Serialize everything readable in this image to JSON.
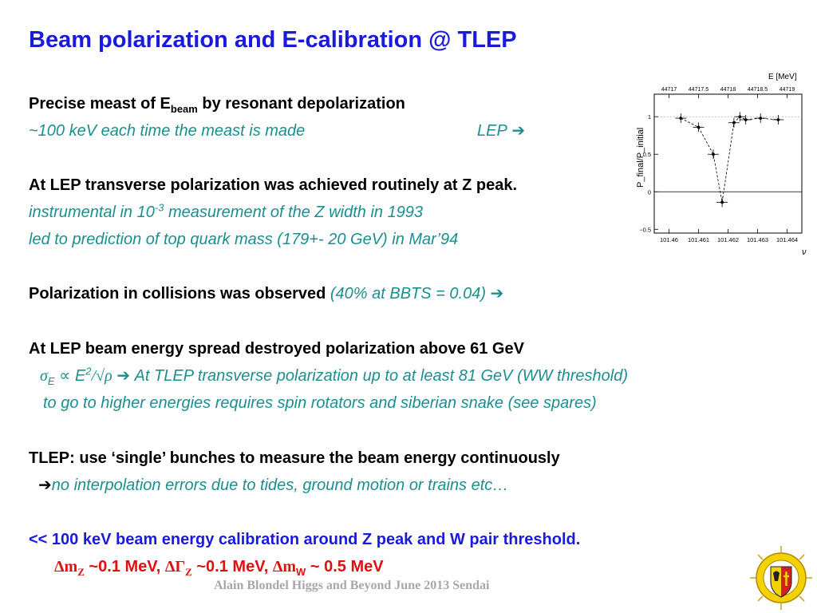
{
  "title": "Beam polarization and E-calibration @ TLEP",
  "b1": {
    "pre": "Precise meast of E",
    "sub": "beam",
    "post": " by resonant depolarization",
    "l2": "~100 keV each time the meast is made",
    "lep": "LEP"
  },
  "b2": {
    "head": "At LEP transverse polarization was achieved routinely at Z peak.",
    "l2a": "instrumental in 10",
    "l2exp": "-3",
    "l2b": " measurement of the Z width in 1993",
    "l3": "led to prediction of top quark mass (179+- 20 GeV) in Mar’94"
  },
  "b3": {
    "head": "Polarization in collisions was observed ",
    "note": "(40% at BBTS = 0.04)"
  },
  "b4": {
    "head": "At LEP beam energy spread destroyed polarization above 61 GeV",
    "sigma": "σ",
    "sigsub": "E",
    "prop": " ∝ ",
    "e": "E",
    "esup": "2",
    "div": "/√ρ",
    "text": " At TLEP transverse polarization up to at least 81 GeV  (WW threshold)",
    "l3": "to go to higher energies requires spin rotators and siberian snake  (see spares)"
  },
  "b5": {
    "head": "TLEP: use ‘single’ bunches to measure the beam energy continuously",
    "l2": "no interpolation errors due to tides, ground motion or trains etc…"
  },
  "b6": {
    "head": "<< 100 keV beam energy calibration around Z peak and W pair threshold.",
    "dm": "Δm",
    "z": "Z",
    "v1": " ~0.1 MeV, ",
    "dg": "ΔΓ",
    "z2": "Z",
    "v2": " ~0.1 MeV,  ",
    "dmw": "Δm",
    "w": "W",
    "v3": " ~ 0.5 MeV"
  },
  "footer": "Alain Blondel Higgs and Beyond June 2013 Sendai",
  "colors": {
    "title": "#1a1adc",
    "teal": "#1b8f8f",
    "red": "#e01010",
    "footer": "#a8a8a8"
  },
  "chart_data": {
    "type": "scatter",
    "ylabel": "P_final/P_initial",
    "top_axis_label": "E [MeV]",
    "top_ticks": [
      "44717",
      "44717.5",
      "44718",
      "44718.5",
      "44719"
    ],
    "bottom_ticks": [
      "101.46",
      "101.461",
      "101.462",
      "101.463",
      "101.464"
    ],
    "xlabel": "ν",
    "y_ticks": [
      "1",
      "0.5",
      "0",
      "−0.5"
    ],
    "xlim": [
      101.4595,
      101.4645
    ],
    "ylim": [
      -0.55,
      1.3
    ],
    "points": [
      {
        "x": 101.4604,
        "y": 0.98
      },
      {
        "x": 101.461,
        "y": 0.86
      },
      {
        "x": 101.4615,
        "y": 0.5
      },
      {
        "x": 101.4618,
        "y": -0.14
      },
      {
        "x": 101.4622,
        "y": 0.92
      },
      {
        "x": 101.4624,
        "y": 1.0
      },
      {
        "x": 101.4626,
        "y": 0.96
      },
      {
        "x": 101.4631,
        "y": 0.98
      },
      {
        "x": 101.4637,
        "y": 0.96
      }
    ]
  }
}
